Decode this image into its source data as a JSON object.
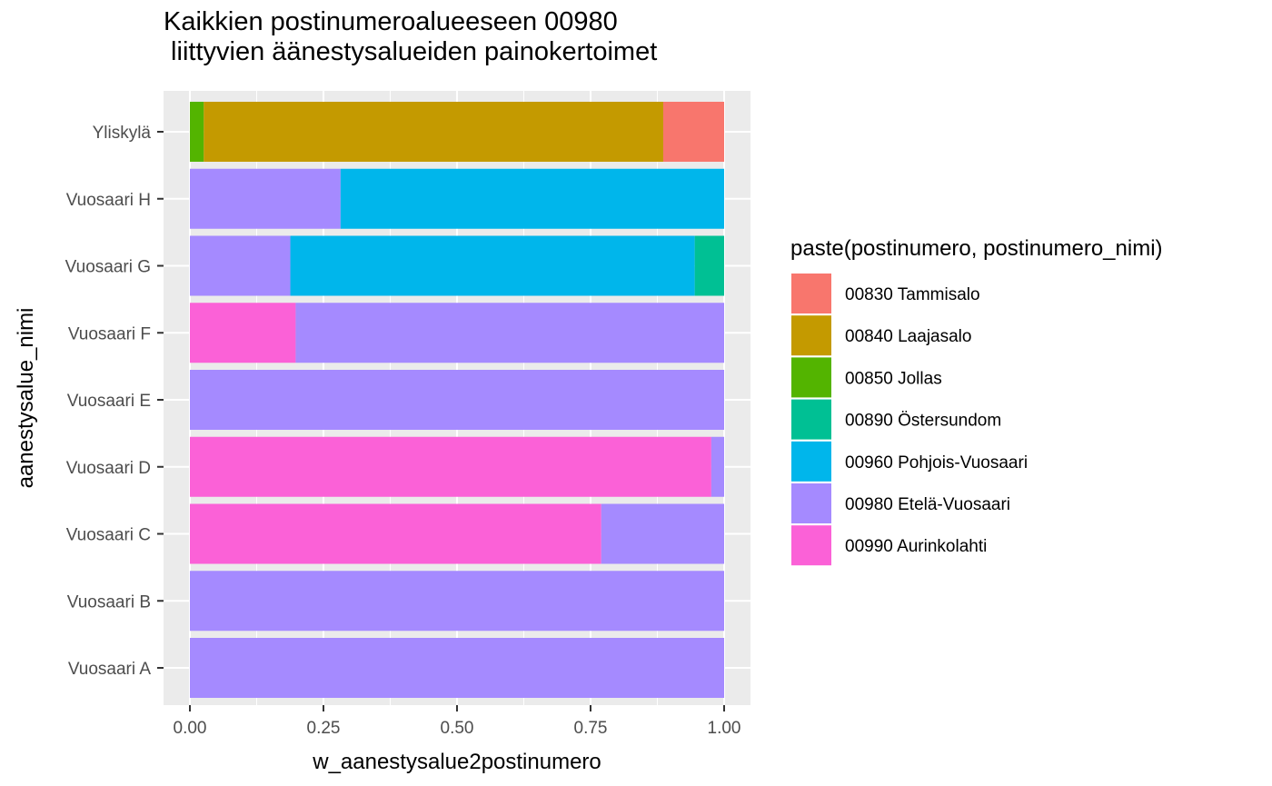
{
  "chart_data": {
    "type": "bar",
    "orientation": "horizontal",
    "stacked": true,
    "title": "Kaikkien postinumeroalueeseen 00980\n liittyvien äänestysalueiden painokertoimet",
    "xlabel": "w_aanestysalue2postinumero",
    "ylabel": "aanestysalue_nimi",
    "xlim": [
      0,
      1
    ],
    "xticks": [
      "0.00",
      "0.25",
      "0.50",
      "0.75",
      "1.00"
    ],
    "xtick_values": [
      0,
      0.25,
      0.5,
      0.75,
      1.0
    ],
    "categories": [
      "Vuosaari A",
      "Vuosaari B",
      "Vuosaari C",
      "Vuosaari D",
      "Vuosaari E",
      "Vuosaari F",
      "Vuosaari G",
      "Vuosaari H",
      "Yliskylä"
    ],
    "series": [
      {
        "name": "00830 Tammisalo",
        "color": "#F8766D",
        "values": [
          0,
          0,
          0,
          0,
          0,
          0,
          0,
          0,
          0.114
        ]
      },
      {
        "name": "00840 Laajasalo",
        "color": "#C49A00",
        "values": [
          0,
          0,
          0,
          0,
          0,
          0,
          0,
          0,
          0.86
        ]
      },
      {
        "name": "00850 Jollas",
        "color": "#53B400",
        "values": [
          0,
          0,
          0,
          0,
          0,
          0,
          0,
          0,
          0.026
        ]
      },
      {
        "name": "00890 Östersundom",
        "color": "#00C094",
        "values": [
          0,
          0,
          0,
          0,
          0,
          0,
          0.055,
          0,
          0
        ]
      },
      {
        "name": "00960 Pohjois-Vuosaari",
        "color": "#00B6EB",
        "values": [
          0,
          0,
          0,
          0,
          0,
          0,
          0.757,
          0.718,
          0
        ]
      },
      {
        "name": "00980 Etelä-Vuosaari",
        "color": "#A58AFF",
        "values": [
          1.0,
          1.0,
          0.23,
          0.024,
          1.0,
          0.802,
          0.188,
          0.282,
          0
        ]
      },
      {
        "name": "00990 Aurinkolahti",
        "color": "#FB61D7",
        "values": [
          0,
          0,
          0.77,
          0.976,
          0,
          0.198,
          0,
          0,
          0
        ]
      }
    ],
    "legend_title": "paste(postinumero, postinumero_nimi)",
    "legend_position": "right",
    "grid": true,
    "panel_background": "#EBEBEB"
  }
}
